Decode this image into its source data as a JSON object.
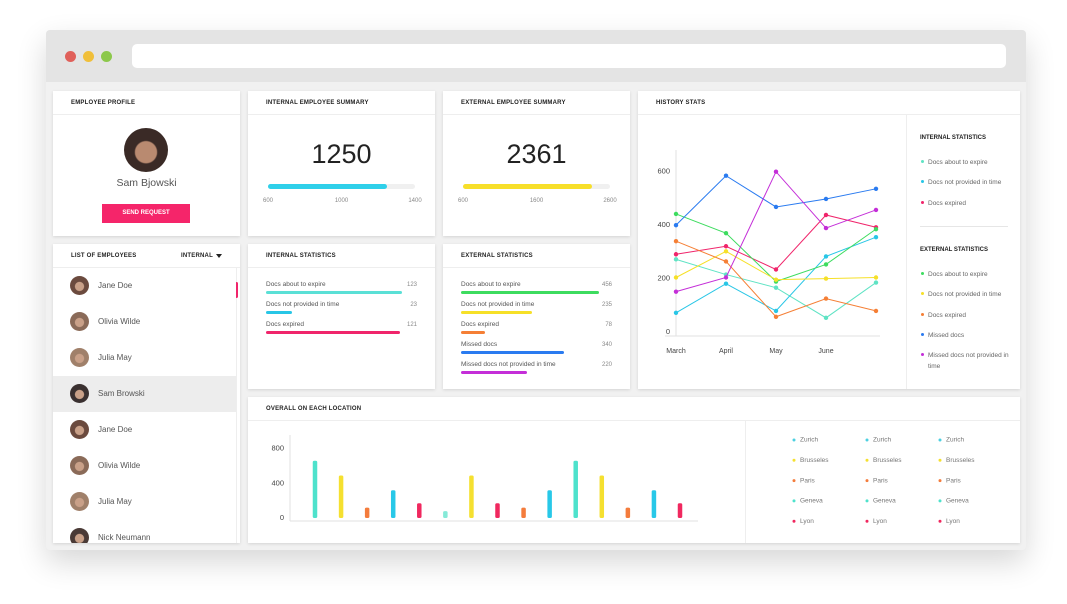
{
  "employee_profile": {
    "title": "EMPLOYEE PROFILE",
    "name": "Sam Bjowski",
    "button": "SEND REQUEST"
  },
  "internal_summary": {
    "title": "INTERNAL EMPLOYEE SUMMARY",
    "value": 1250,
    "color": "#2fd0ea",
    "xlim": [
      600,
      1400
    ],
    "xticks": [
      600,
      1000,
      1400
    ]
  },
  "external_summary": {
    "title": "EXTERNAL EMPLOYEE SUMMARY",
    "value": 2361,
    "color": "#f7df2a",
    "xlim": [
      600,
      2600
    ],
    "xticks": [
      600,
      1600,
      2600
    ]
  },
  "employee_list": {
    "title": "LIST OF EMPLOYEES",
    "filter": "INTERNAL",
    "employees": [
      {
        "name": "Jane Doe"
      },
      {
        "name": "Olivia Wilde"
      },
      {
        "name": "Julia May"
      },
      {
        "name": "Sam Browski",
        "selected": true
      },
      {
        "name": "Jane Doe"
      },
      {
        "name": "Olivia Wilde"
      },
      {
        "name": "Julia May"
      },
      {
        "name": "Nick Neumann"
      }
    ]
  },
  "internal_statistics": {
    "title": "INTERNAL STATISTICS",
    "xlim": [
      0,
      128
    ],
    "items": [
      {
        "label": "Docs about to expire",
        "value": 123,
        "color": "#5ae0d6"
      },
      {
        "label": "Docs not provided in time",
        "value": 23,
        "color": "#28c6e6"
      },
      {
        "label": "Docs expired",
        "value": 121,
        "color": "#f0256b"
      }
    ]
  },
  "external_statistics": {
    "title": "EXTERNAL STATISTICS",
    "xlim": [
      0,
      470
    ],
    "items": [
      {
        "label": "Docs about to expire",
        "value": 456,
        "color": "#3ddc5f"
      },
      {
        "label": "Docs not provided in time",
        "value": 235,
        "color": "#f6e028"
      },
      {
        "label": "Docs expired",
        "value": 78,
        "color": "#f57f35"
      },
      {
        "label": "Missed docs",
        "value": 340,
        "color": "#2a7bf0"
      },
      {
        "label": "Missed docs not provided in time",
        "value": 220,
        "color": "#c42ed8"
      }
    ]
  },
  "chart_data": [
    {
      "type": "line",
      "title": "HISTORY STATS",
      "categories": [
        "March",
        "April",
        "May",
        "June",
        null
      ],
      "ylim": [
        0,
        700
      ],
      "yticks": [
        0,
        200,
        400,
        600
      ],
      "series_groups": [
        {
          "title": "INTERNAL STATISTICS",
          "series": [
            {
              "name": "Docs about to expire",
              "color": "#5fe3c4",
              "values": [
                272,
                215,
                166,
                53,
                185
              ]
            },
            {
              "name": "Docs not provided in time",
              "color": "#28c6e6",
              "values": [
                72,
                181,
                79,
                283,
                355
              ]
            },
            {
              "name": "Docs expired",
              "color": "#f0256b",
              "values": [
                291,
                321,
                234,
                438,
                392
              ]
            }
          ]
        },
        {
          "title": "EXTERNAL STATISTICS",
          "series": [
            {
              "name": "Docs about to expire",
              "color": "#3ddc5f",
              "values": [
                442,
                370,
                189,
                253,
                385
              ]
            },
            {
              "name": "Docs not provided in time",
              "color": "#f6e028",
              "values": [
                204,
                302,
                196,
                200,
                204
              ]
            },
            {
              "name": "Docs expired",
              "color": "#f57f35",
              "values": [
                340,
                264,
                57,
                125,
                79
              ]
            },
            {
              "name": "Missed docs",
              "color": "#2a7bf0",
              "values": [
                400,
                585,
                468,
                498,
                536
              ]
            },
            {
              "name": "Missed docs not provided in time",
              "color": "#c42ed8",
              "values": [
                151,
                204,
                600,
                389,
                457
              ]
            }
          ]
        }
      ]
    },
    {
      "type": "bar",
      "title": "OVERALL ON EACH LOCATION",
      "categories": [
        null,
        null,
        null,
        null,
        null,
        null,
        null,
        null,
        null,
        null,
        null,
        null,
        null,
        null,
        null
      ],
      "values": [
        660,
        490,
        120,
        320,
        170,
        80,
        490,
        170,
        120,
        320,
        660,
        490,
        120,
        320,
        170
      ],
      "colors": [
        "#4ee2cc",
        "#f5e030",
        "#f47c3c",
        "#28c8e8",
        "#f0285f",
        "#86ead8",
        "#f5e030",
        "#f0285f",
        "#f47c3c",
        "#28c8e8",
        "#4ee2cc",
        "#f5e030",
        "#f47c3c",
        "#28c8e8",
        "#f0285f"
      ],
      "ylim": [
        0,
        900
      ],
      "yticks": [
        0,
        400,
        800
      ],
      "legend_columns": [
        [
          {
            "name": "Zurich",
            "color": "#4dd0e1"
          },
          {
            "name": "Brusseles",
            "color": "#f5e030"
          },
          {
            "name": "Paris",
            "color": "#f47c3c"
          },
          {
            "name": "Geneva",
            "color": "#4ee2cc"
          },
          {
            "name": "Lyon",
            "color": "#f0285f"
          }
        ],
        [
          {
            "name": "Zurich",
            "color": "#4dd0e1"
          },
          {
            "name": "Brusseles",
            "color": "#f5e030"
          },
          {
            "name": "Paris",
            "color": "#f47c3c"
          },
          {
            "name": "Geneva",
            "color": "#4ee2cc"
          },
          {
            "name": "Lyon",
            "color": "#f0285f"
          }
        ],
        [
          {
            "name": "Zurich",
            "color": "#4dd0e1"
          },
          {
            "name": "Brusseles",
            "color": "#f5e030"
          },
          {
            "name": "Paris",
            "color": "#f47c3c"
          },
          {
            "name": "Geneva",
            "color": "#4ee2cc"
          },
          {
            "name": "Lyon",
            "color": "#f0285f"
          }
        ]
      ]
    }
  ]
}
